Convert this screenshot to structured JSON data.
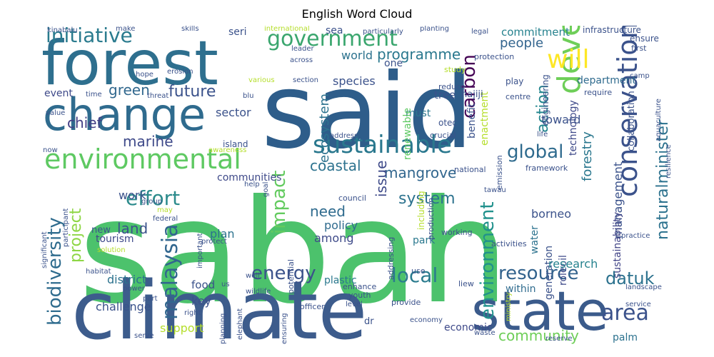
{
  "title": "English Word Cloud",
  "words": [
    {
      "text": "sabah",
      "color": "#4cc26c"
    },
    {
      "text": "said",
      "color": "#2e5d8a"
    },
    {
      "text": "climate",
      "color": "#3d5c8c"
    },
    {
      "text": "state",
      "color": "#3b5b8b"
    },
    {
      "text": "forest",
      "color": "#2e6f8e"
    },
    {
      "text": "change",
      "color": "#2f6b8e"
    },
    {
      "text": "environmental",
      "color": "#5ec962"
    },
    {
      "text": "sustainable",
      "color": "#2a788e"
    },
    {
      "text": "government",
      "color": "#3aa66e"
    },
    {
      "text": "development",
      "color": "#6ece58"
    },
    {
      "text": "conservation",
      "color": "#3b528b"
    },
    {
      "text": "initiative",
      "color": "#2a7b8e"
    },
    {
      "text": "will",
      "color": "#fde725"
    },
    {
      "text": "effort",
      "color": "#2c8b8c"
    },
    {
      "text": "malaysia",
      "color": "#31668e"
    },
    {
      "text": "biodiversity",
      "color": "#2f6c8e"
    },
    {
      "text": "project",
      "color": "#8ed645"
    },
    {
      "text": "environment",
      "color": "#21918c"
    },
    {
      "text": "energy",
      "color": "#3b528b"
    },
    {
      "text": "local",
      "color": "#2b7b8e"
    },
    {
      "text": "resource",
      "color": "#33638d"
    },
    {
      "text": "area",
      "color": "#3b528b"
    },
    {
      "text": "datuk",
      "color": "#2c728e"
    },
    {
      "text": "global",
      "color": "#2f6b8e"
    },
    {
      "text": "carbon",
      "color": "#440154"
    },
    {
      "text": "impact",
      "color": "#63cb5f"
    },
    {
      "text": "naturalminister",
      "color": "#2c728e"
    },
    {
      "text": "action",
      "color": "#24868e"
    },
    {
      "text": "forestry",
      "color": "#2a778e"
    },
    {
      "text": "community",
      "color": "#6ece58"
    },
    {
      "text": "ecosystem",
      "color": "#2c728e"
    },
    {
      "text": "programme",
      "color": "#2a788e"
    },
    {
      "text": "future",
      "color": "#3b528b"
    },
    {
      "text": "green",
      "color": "#31688e"
    },
    {
      "text": "chief",
      "color": "#433e85"
    },
    {
      "text": "marine",
      "color": "#3e4989"
    },
    {
      "text": "coastal",
      "color": "#2c728e"
    },
    {
      "text": "mangrove",
      "color": "#31668e"
    },
    {
      "text": "system",
      "color": "#2c728e"
    },
    {
      "text": "issue",
      "color": "#3e4a89"
    },
    {
      "text": "need",
      "color": "#2f6b8e"
    },
    {
      "text": "policy",
      "color": "#2f6b8e"
    },
    {
      "text": "among",
      "color": "#3e4a89"
    },
    {
      "text": "people",
      "color": "#32648e"
    },
    {
      "text": "commitment",
      "color": "#26828e"
    },
    {
      "text": "department",
      "color": "#2f6b8e"
    },
    {
      "text": "technology",
      "color": "#3e4989"
    },
    {
      "text": "management",
      "color": "#3b528b"
    },
    {
      "text": "sustainability",
      "color": "#414487"
    },
    {
      "text": "collaboration",
      "color": "#3b528b"
    },
    {
      "text": "toward",
      "color": "#3b528b"
    },
    {
      "text": "borneo",
      "color": "#3b528b"
    },
    {
      "text": "roleoil",
      "color": "#3e4989"
    },
    {
      "text": "water",
      "color": "#2c728e"
    },
    {
      "text": "generation",
      "color": "#3b528b"
    },
    {
      "text": "research",
      "color": "#26828e"
    },
    {
      "text": "within",
      "color": "#2f6b8e"
    },
    {
      "text": "palm",
      "color": "#2c728e"
    },
    {
      "text": "economic",
      "color": "#3e4989"
    },
    {
      "text": "land",
      "color": "#3b528b"
    },
    {
      "text": "district",
      "color": "#2c728e"
    },
    {
      "text": "challenge",
      "color": "#3b528b"
    },
    {
      "text": "key",
      "color": "#3b528b"
    },
    {
      "text": "support",
      "color": "#b5de2b"
    },
    {
      "text": "tourism",
      "color": "#3e4989"
    },
    {
      "text": "work",
      "color": "#3b528b"
    },
    {
      "text": "plan",
      "color": "#2c728e"
    },
    {
      "text": "park",
      "color": "#2a788e"
    },
    {
      "text": "plastic",
      "color": "#2a788e"
    },
    {
      "text": "food",
      "color": "#3b528b"
    },
    {
      "text": "communities",
      "color": "#3e4989"
    },
    {
      "text": "sector",
      "color": "#3b528b"
    },
    {
      "text": "event",
      "color": "#3e4989"
    },
    {
      "text": "species",
      "color": "#3b528b"
    },
    {
      "text": "tree",
      "color": "#3b528b"
    },
    {
      "text": "must",
      "color": "#2a788e"
    },
    {
      "text": "benefit",
      "color": "#3b528b"
    },
    {
      "text": "renewable",
      "color": "#5ec962"
    },
    {
      "text": "enactment",
      "color": "#b5de2b"
    },
    {
      "text": "world",
      "color": "#2c728e"
    },
    {
      "text": "one",
      "color": "#3b528b"
    },
    {
      "text": "sea",
      "color": "#3b528b"
    },
    {
      "text": "seri",
      "color": "#3b528b"
    },
    {
      "text": "hajiji",
      "color": "#3b528b"
    },
    {
      "text": "otec",
      "color": "#3b528b"
    },
    {
      "text": "engineering",
      "color": "#3b528b"
    },
    {
      "text": "infrastructure",
      "color": "#3b528b"
    },
    {
      "text": "ensure",
      "color": "#3b528b"
    },
    {
      "text": "first",
      "color": "#3b528b"
    },
    {
      "text": "protection",
      "color": "#3b528b"
    },
    {
      "text": "require",
      "color": "#3b528b"
    },
    {
      "text": "play",
      "color": "#3b528b"
    },
    {
      "text": "centre",
      "color": "#3b528b"
    },
    {
      "text": "study",
      "color": "#b5de2b"
    },
    {
      "text": "reduce",
      "color": "#3b528b"
    },
    {
      "text": "crucial",
      "color": "#3b528b"
    },
    {
      "text": "address",
      "color": "#3b528b"
    },
    {
      "text": "framework",
      "color": "#3b528b"
    },
    {
      "text": "national",
      "color": "#3b528b"
    },
    {
      "text": "emission",
      "color": "#3b528b"
    },
    {
      "text": "production",
      "color": "#3b528b"
    },
    {
      "text": "including",
      "color": "#b5de2b"
    },
    {
      "text": "potential",
      "color": "#3b528b"
    },
    {
      "text": "addressing",
      "color": "#3b528b"
    },
    {
      "text": "council",
      "color": "#3b528b"
    },
    {
      "text": "tawau",
      "color": "#3b528b"
    },
    {
      "text": "working",
      "color": "#3b528b"
    },
    {
      "text": "activities",
      "color": "#3b528b"
    },
    {
      "text": "aquaculture",
      "color": "#3b528b"
    },
    {
      "text": "resilience",
      "color": "#3b528b"
    },
    {
      "text": "life",
      "color": "#3b528b"
    },
    {
      "text": "use",
      "color": "#3b528b"
    },
    {
      "text": "liew",
      "color": "#3b528b"
    },
    {
      "text": "enhance",
      "color": "#3b528b"
    },
    {
      "text": "level",
      "color": "#3b528b"
    },
    {
      "text": "youth",
      "color": "#3b528b"
    },
    {
      "text": "provide",
      "color": "#3b528b"
    },
    {
      "text": "officer",
      "color": "#3b528b"
    },
    {
      "text": "dr",
      "color": "#3b528b"
    },
    {
      "text": "economy",
      "color": "#3b528b"
    },
    {
      "text": "waste",
      "color": "#3b528b"
    },
    {
      "text": "reserve",
      "color": "#3b528b"
    },
    {
      "text": "ministry",
      "color": "#b5de2b"
    },
    {
      "text": "landscape",
      "color": "#3b528b"
    },
    {
      "text": "practice",
      "color": "#3b528b"
    },
    {
      "text": "service",
      "color": "#3b528b"
    },
    {
      "text": "wildlife",
      "color": "#3b528b"
    },
    {
      "text": "elephant",
      "color": "#3b528b"
    },
    {
      "text": "planning",
      "color": "#3b528b"
    },
    {
      "text": "ensuring",
      "color": "#3b528b"
    },
    {
      "text": "well",
      "color": "#3b528b"
    },
    {
      "text": "us",
      "color": "#3b528b"
    },
    {
      "text": "protect",
      "color": "#3b528b"
    },
    {
      "text": "right",
      "color": "#3b528b"
    },
    {
      "text": "serve",
      "color": "#3b528b"
    },
    {
      "text": "part",
      "color": "#3b528b"
    },
    {
      "text": "power",
      "color": "#3b528b"
    },
    {
      "text": "habitat",
      "color": "#3b528b"
    },
    {
      "text": "important",
      "color": "#3b528b"
    },
    {
      "text": "solution",
      "color": "#b5de2b"
    },
    {
      "text": "new",
      "color": "#3b528b"
    },
    {
      "text": "significant",
      "color": "#3b528b"
    },
    {
      "text": "participant",
      "color": "#3b528b"
    },
    {
      "text": "federal",
      "color": "#3b528b"
    },
    {
      "text": "may",
      "color": "#b5de2b"
    },
    {
      "text": "group",
      "color": "#3b528b"
    },
    {
      "text": "goal",
      "color": "#3b528b"
    },
    {
      "text": "help",
      "color": "#3b528b"
    },
    {
      "text": "island",
      "color": "#3b528b"
    },
    {
      "text": "awareness",
      "color": "#b5de2b"
    },
    {
      "text": "now",
      "color": "#3b528b"
    },
    {
      "text": "value",
      "color": "#3b528b"
    },
    {
      "text": "time",
      "color": "#3b528b"
    },
    {
      "text": "threat",
      "color": "#3b528b"
    },
    {
      "text": "blu",
      "color": "#3b528b"
    },
    {
      "text": "erosion",
      "color": "#3b528b"
    },
    {
      "text": "hope",
      "color": "#3b528b"
    },
    {
      "text": "various",
      "color": "#b5de2b"
    },
    {
      "text": "section",
      "color": "#3b528b"
    },
    {
      "text": "across",
      "color": "#3b528b"
    },
    {
      "text": "leader",
      "color": "#3b528b"
    },
    {
      "text": "kinabalu",
      "color": "#3b528b"
    },
    {
      "text": "make",
      "color": "#3b528b"
    },
    {
      "text": "skills",
      "color": "#3b528b"
    },
    {
      "text": "international",
      "color": "#b5de2b"
    },
    {
      "text": "particularly",
      "color": "#3b528b"
    },
    {
      "text": "planting",
      "color": "#3b528b"
    },
    {
      "text": "legal",
      "color": "#3b528b"
    },
    {
      "text": "camp",
      "color": "#3b528b"
    }
  ]
}
